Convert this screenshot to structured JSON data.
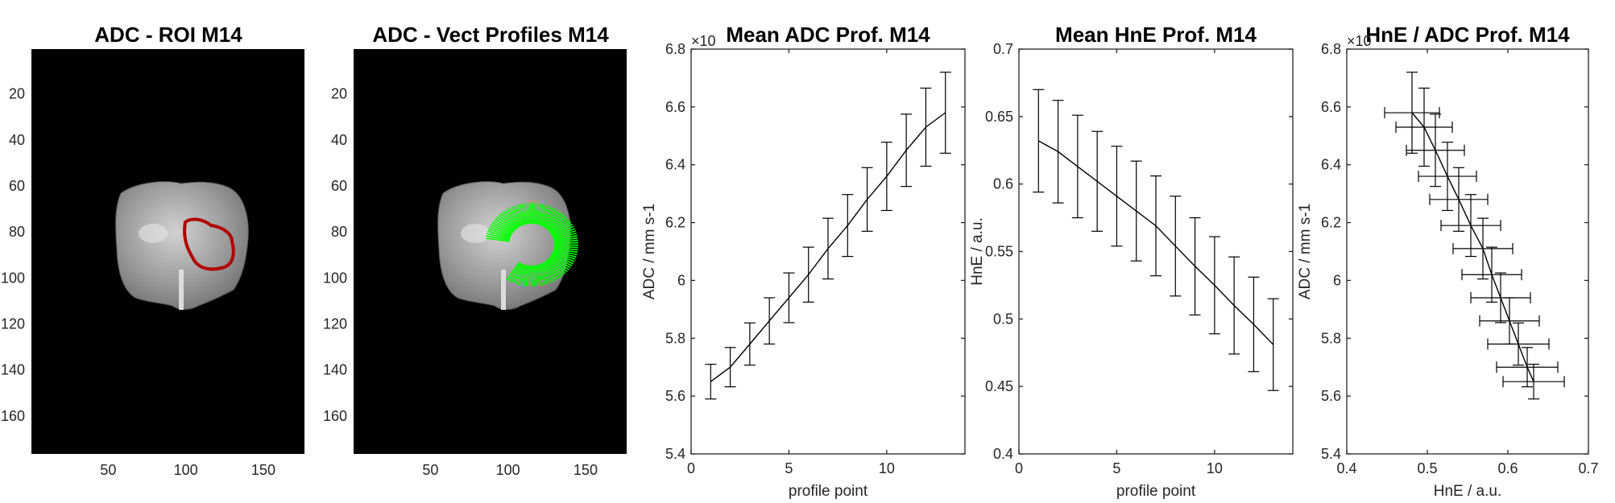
{
  "figure": {
    "panels": [
      {
        "title": "ADC - ROI M14"
      },
      {
        "title": "ADC - Vect Profiles M14"
      }
    ],
    "image_axes": {
      "xticks": [
        50,
        100,
        150
      ],
      "yticks": [
        20,
        40,
        60,
        80,
        100,
        120,
        140,
        160
      ],
      "xlim": [
        0.5,
        176.5
      ],
      "ylim": [
        0.5,
        176.5
      ]
    },
    "colors": {
      "roi": "#b00000",
      "vectors": "#00ff00",
      "background": "#000000"
    }
  },
  "chart_data": [
    {
      "type": "line",
      "title": "Mean ADC Prof. M14",
      "xlabel": "profile point",
      "ylabel": "ADC / mm s-1",
      "y_exponent_label": "×10",
      "xlim": [
        0,
        14
      ],
      "ylim": [
        5.4,
        6.8
      ],
      "xticks": [
        0,
        5,
        10
      ],
      "yticks": [
        "5.4",
        "5.6",
        "5.8",
        "6",
        "6.2",
        "6.4",
        "6.6",
        "6.8"
      ],
      "x": [
        1,
        2,
        3,
        4,
        5,
        6,
        7,
        8,
        9,
        10,
        11,
        12,
        13
      ],
      "y": [
        5.65,
        5.7,
        5.78,
        5.86,
        5.94,
        6.02,
        6.11,
        6.19,
        6.28,
        6.36,
        6.45,
        6.53,
        6.58
      ],
      "yerr": [
        0.06,
        0.068,
        0.073,
        0.08,
        0.086,
        0.095,
        0.105,
        0.107,
        0.11,
        0.118,
        0.125,
        0.135,
        0.14
      ]
    },
    {
      "type": "line",
      "title": "Mean HnE Prof. M14",
      "xlabel": "profile point",
      "ylabel": "HnE / a.u.",
      "xlim": [
        0,
        14
      ],
      "ylim": [
        0.4,
        0.7
      ],
      "xticks": [
        0,
        5,
        10
      ],
      "yticks": [
        "0.4",
        "0.45",
        "0.5",
        "0.55",
        "0.6",
        "0.65",
        "0.7"
      ],
      "x": [
        1,
        2,
        3,
        4,
        5,
        6,
        7,
        8,
        9,
        10,
        11,
        12,
        13
      ],
      "y": [
        0.632,
        0.624,
        0.613,
        0.602,
        0.591,
        0.58,
        0.569,
        0.554,
        0.539,
        0.525,
        0.51,
        0.496,
        0.481
      ],
      "yerr": [
        0.038,
        0.038,
        0.038,
        0.037,
        0.037,
        0.037,
        0.037,
        0.037,
        0.036,
        0.036,
        0.036,
        0.035,
        0.034
      ]
    },
    {
      "type": "line",
      "title": "HnE / ADC Prof. M14",
      "xlabel": "HnE / a.u.",
      "ylabel": "ADC / mm s-1",
      "y_exponent_label": "×10",
      "xlim": [
        0.4,
        0.7
      ],
      "ylim": [
        5.4,
        6.8
      ],
      "xticks": [
        "0.4",
        "0.5",
        "0.6",
        "0.7"
      ],
      "yticks": [
        "5.4",
        "5.6",
        "5.8",
        "6",
        "6.2",
        "6.4",
        "6.6",
        "6.8"
      ],
      "x": [
        0.481,
        0.496,
        0.51,
        0.525,
        0.539,
        0.554,
        0.569,
        0.58,
        0.591,
        0.602,
        0.613,
        0.624,
        0.632
      ],
      "y": [
        6.58,
        6.53,
        6.45,
        6.36,
        6.28,
        6.19,
        6.11,
        6.02,
        5.94,
        5.86,
        5.78,
        5.7,
        5.65
      ],
      "xerr": [
        0.034,
        0.035,
        0.036,
        0.036,
        0.036,
        0.037,
        0.037,
        0.037,
        0.037,
        0.037,
        0.038,
        0.038,
        0.038
      ],
      "yerr": [
        0.14,
        0.135,
        0.125,
        0.118,
        0.11,
        0.107,
        0.105,
        0.095,
        0.086,
        0.08,
        0.073,
        0.068,
        0.06
      ]
    }
  ]
}
